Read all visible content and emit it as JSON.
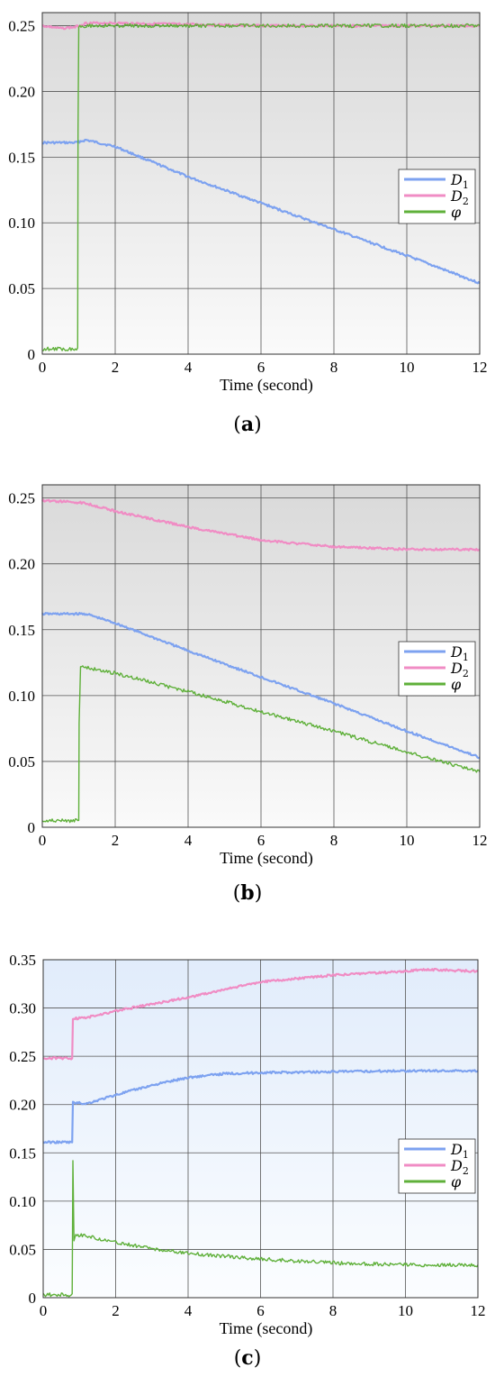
{
  "chart_data": [
    {
      "type": "line",
      "caption": "a",
      "xlabel": "Time (second)",
      "ylabel": "",
      "xlim": [
        0,
        12
      ],
      "ylim": [
        0,
        0.26
      ],
      "xticks": [
        "0",
        "2",
        "4",
        "6",
        "8",
        "10",
        "12"
      ],
      "yticks": [
        "0",
        "0.05",
        "0.10",
        "0.15",
        "0.20",
        "0.25"
      ],
      "grid": true,
      "legend_position": "right-middle",
      "background": "gray-gradient",
      "series": [
        {
          "name": "D1",
          "color": "#7da2f0",
          "x": [
            0,
            0.9,
            1.2,
            2,
            4,
            6,
            8,
            10,
            12
          ],
          "y": [
            0.161,
            0.161,
            0.163,
            0.158,
            0.135,
            0.115,
            0.095,
            0.075,
            0.054
          ]
        },
        {
          "name": "D2",
          "color": "#f08cc4",
          "x": [
            0,
            0.5,
            0.9,
            1.2,
            2,
            4,
            6,
            8,
            10,
            12
          ],
          "y": [
            0.25,
            0.248,
            0.249,
            0.252,
            0.252,
            0.251,
            0.25,
            0.25,
            0.25,
            0.25
          ]
        },
        {
          "name": "φ",
          "color": "#5fb03a",
          "x": [
            0,
            0.97,
            0.98,
            1.0,
            2,
            4,
            6,
            8,
            10,
            12
          ],
          "y": [
            0.004,
            0.004,
            0.17,
            0.25,
            0.25,
            0.25,
            0.25,
            0.25,
            0.25,
            0.25
          ]
        }
      ]
    },
    {
      "type": "line",
      "caption": "b",
      "xlabel": "Time (second)",
      "ylabel": "",
      "xlim": [
        0,
        12
      ],
      "ylim": [
        0,
        0.26
      ],
      "xticks": [
        "0",
        "2",
        "4",
        "6",
        "8",
        "10",
        "12"
      ],
      "yticks": [
        "0",
        "0.05",
        "0.10",
        "0.15",
        "0.20",
        "0.25"
      ],
      "grid": true,
      "legend_position": "right-middle",
      "background": "gray-gradient",
      "series": [
        {
          "name": "D1",
          "color": "#7da2f0",
          "x": [
            0,
            0.9,
            1.2,
            2,
            4,
            6,
            8,
            10,
            12
          ],
          "y": [
            0.162,
            0.162,
            0.162,
            0.155,
            0.134,
            0.114,
            0.094,
            0.073,
            0.053
          ]
        },
        {
          "name": "D2",
          "color": "#f08cc4",
          "x": [
            0,
            0.8,
            1.2,
            2,
            4,
            6,
            8,
            10,
            12
          ],
          "y": [
            0.248,
            0.247,
            0.246,
            0.24,
            0.228,
            0.218,
            0.213,
            0.211,
            0.211
          ]
        },
        {
          "name": "φ",
          "color": "#5fb03a",
          "x": [
            0,
            1.0,
            1.01,
            1.05,
            2,
            4,
            6,
            8,
            10,
            12
          ],
          "y": [
            0.005,
            0.005,
            0.08,
            0.122,
            0.117,
            0.103,
            0.088,
            0.073,
            0.057,
            0.042
          ]
        }
      ]
    },
    {
      "type": "line",
      "caption": "c",
      "xlabel": "Time (second)",
      "ylabel": "",
      "xlim": [
        0,
        12
      ],
      "ylim": [
        0,
        0.35
      ],
      "xticks": [
        "0",
        "2",
        "4",
        "6",
        "8",
        "10",
        "12"
      ],
      "yticks": [
        "0",
        "0.05",
        "0.10",
        "0.15",
        "0.20",
        "0.25",
        "0.30",
        "0.35"
      ],
      "grid": true,
      "legend_position": "right-middle",
      "background": "blue-gradient",
      "series": [
        {
          "name": "D1",
          "color": "#7da2f0",
          "x": [
            0,
            0.8,
            0.82,
            1.2,
            2,
            3,
            4,
            5,
            6,
            8,
            10,
            12
          ],
          "y": [
            0.161,
            0.161,
            0.202,
            0.201,
            0.21,
            0.22,
            0.228,
            0.232,
            0.233,
            0.234,
            0.235,
            0.235
          ]
        },
        {
          "name": "D2",
          "color": "#f08cc4",
          "x": [
            0,
            0.8,
            0.82,
            1.2,
            2,
            4,
            6,
            8,
            10,
            10.5,
            12
          ],
          "y": [
            0.248,
            0.248,
            0.289,
            0.29,
            0.297,
            0.311,
            0.327,
            0.334,
            0.338,
            0.34,
            0.338
          ]
        },
        {
          "name": "φ",
          "color": "#5fb03a",
          "x": [
            0,
            0.8,
            0.82,
            0.85,
            0.9,
            1.2,
            2,
            3,
            4,
            6,
            8,
            10,
            12
          ],
          "y": [
            0.003,
            0.003,
            0.143,
            0.06,
            0.065,
            0.064,
            0.057,
            0.051,
            0.046,
            0.04,
            0.036,
            0.034,
            0.034
          ]
        }
      ]
    }
  ]
}
